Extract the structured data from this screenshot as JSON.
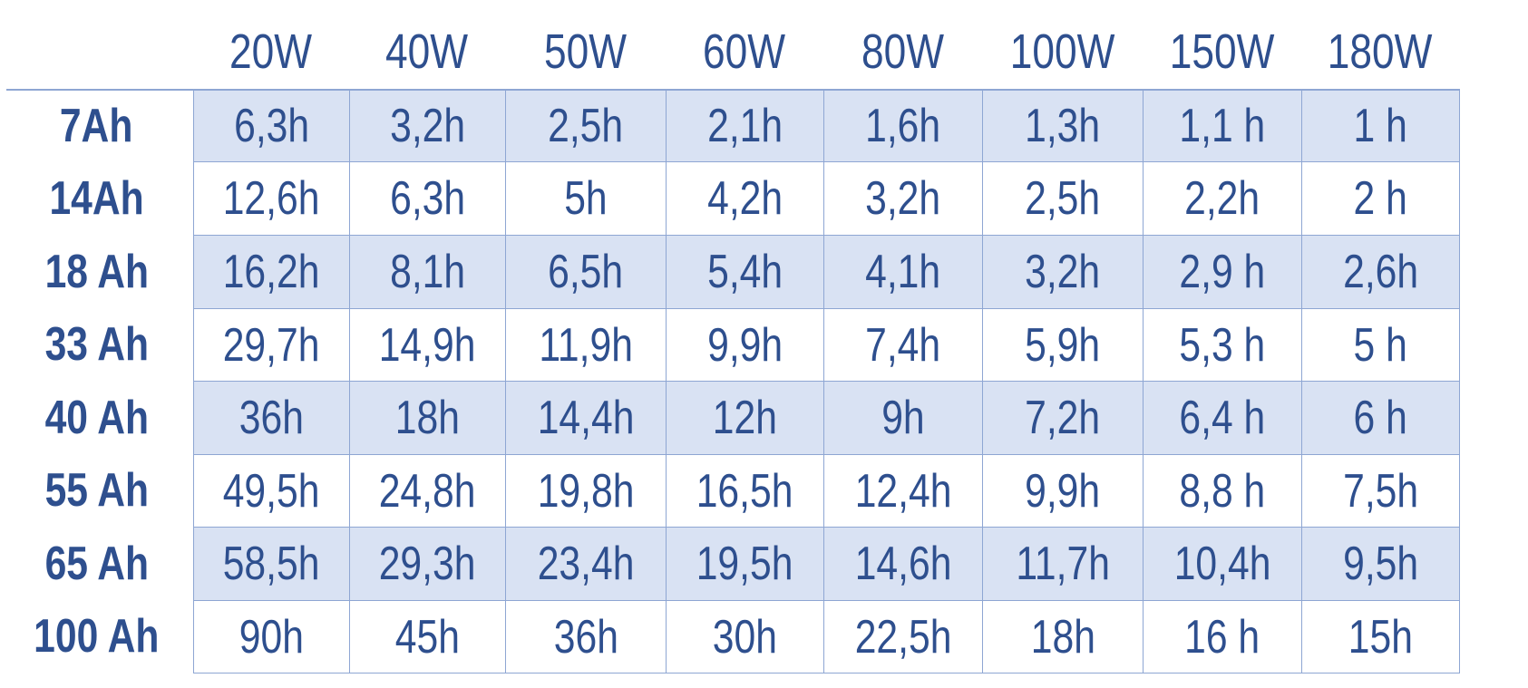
{
  "table": {
    "columns": [
      "20W",
      "40W",
      "50W",
      "60W",
      "80W",
      "100W",
      "150W",
      "180W"
    ],
    "rows": [
      {
        "label": "7Ah",
        "values": [
          "6,3h",
          "3,2h",
          "2,5h",
          "2,1h",
          "1,6h",
          "1,3h",
          "1,1 h",
          "1 h"
        ]
      },
      {
        "label": "14Ah",
        "values": [
          "12,6h",
          "6,3h",
          "5h",
          "4,2h",
          "3,2h",
          "2,5h",
          "2,2h",
          "2 h"
        ]
      },
      {
        "label": "18 Ah",
        "values": [
          "16,2h",
          "8,1h",
          "6,5h",
          "5,4h",
          "4,1h",
          "3,2h",
          "2,9 h",
          "2,6h"
        ]
      },
      {
        "label": "33 Ah",
        "values": [
          "29,7h",
          "14,9h",
          "11,9h",
          "9,9h",
          "7,4h",
          "5,9h",
          "5,3 h",
          "5 h"
        ]
      },
      {
        "label": "40 Ah",
        "values": [
          "36h",
          "18h",
          "14,4h",
          "12h",
          "9h",
          "7,2h",
          "6,4 h",
          "6 h"
        ]
      },
      {
        "label": "55 Ah",
        "values": [
          "49,5h",
          "24,8h",
          "19,8h",
          "16,5h",
          "12,4h",
          "9,9h",
          "8,8 h",
          "7,5h"
        ]
      },
      {
        "label": "65 Ah",
        "values": [
          "58,5h",
          "29,3h",
          "23,4h",
          "19,5h",
          "14,6h",
          "11,7h",
          "10,4h",
          "9,5h"
        ]
      },
      {
        "label": "100 Ah",
        "values": [
          "90h",
          "45h",
          "36h",
          "30h",
          "22,5h",
          "18h",
          "16 h",
          "15h"
        ]
      }
    ],
    "colors": {
      "text": "#2e4f8e",
      "shade": "#d9e2f3",
      "border": "#8ea6d3"
    }
  }
}
